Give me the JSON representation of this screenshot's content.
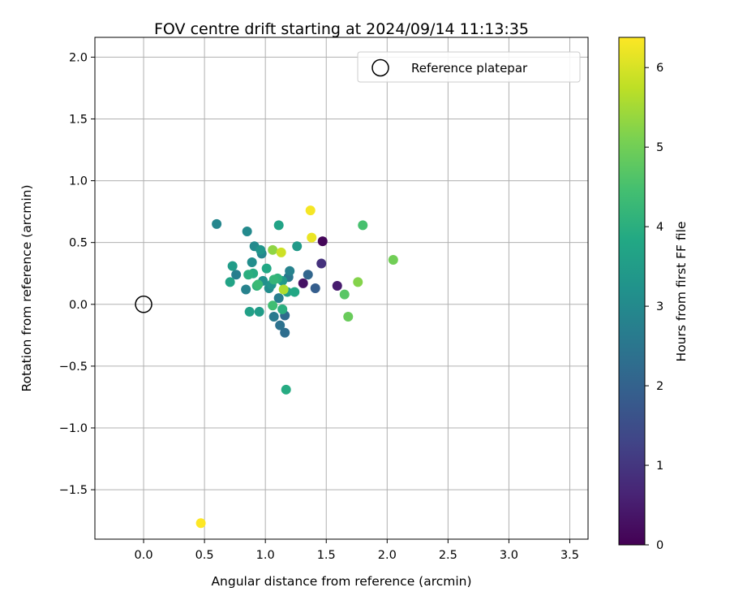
{
  "chart_data": {
    "type": "scatter",
    "title": "FOV centre drift starting at 2024/09/14 11:13:35",
    "xlabel": "Angular distance from reference (arcmin)",
    "ylabel": "Rotation from reference (arcmin)",
    "xlim": [
      -0.4,
      3.65
    ],
    "ylim": [
      -1.9,
      2.16
    ],
    "xticks": [
      0.0,
      0.5,
      1.0,
      1.5,
      2.0,
      2.5,
      3.0,
      3.5
    ],
    "xtick_labels": [
      "0.0",
      "0.5",
      "1.0",
      "1.5",
      "2.0",
      "2.5",
      "3.0",
      "3.5"
    ],
    "yticks": [
      -1.5,
      -1.0,
      -0.5,
      0.0,
      0.5,
      1.0,
      1.5,
      2.0
    ],
    "ytick_labels": [
      "−1.5",
      "−1.0",
      "−0.5",
      "0.0",
      "0.5",
      "1.0",
      "1.5",
      "2.0"
    ],
    "grid": true,
    "legend": {
      "position": "top-right",
      "entries": [
        "Reference platepar"
      ]
    },
    "reference_point": {
      "x": 0.0,
      "y": 0.0,
      "label": "Reference platepar"
    },
    "colorbar": {
      "label": "Hours from first FF file",
      "colormap": "viridis",
      "range": [
        0,
        6.38
      ],
      "ticks": [
        0,
        1,
        2,
        3,
        4,
        5,
        6
      ],
      "tick_labels": [
        "0",
        "1",
        "2",
        "3",
        "4",
        "5",
        "6"
      ]
    },
    "points": [
      {
        "x": 1.47,
        "y": 0.51,
        "hours": 0.1
      },
      {
        "x": 1.31,
        "y": 0.17,
        "hours": 0.3
      },
      {
        "x": 1.59,
        "y": 0.15,
        "hours": 0.5
      },
      {
        "x": 1.46,
        "y": 0.33,
        "hours": 0.9
      },
      {
        "x": 1.41,
        "y": 0.13,
        "hours": 1.9
      },
      {
        "x": 1.35,
        "y": 0.24,
        "hours": 2.1
      },
      {
        "x": 1.16,
        "y": -0.09,
        "hours": 2.2
      },
      {
        "x": 1.16,
        "y": -0.23,
        "hours": 2.3
      },
      {
        "x": 1.12,
        "y": -0.17,
        "hours": 2.4
      },
      {
        "x": 1.19,
        "y": 0.22,
        "hours": 2.5
      },
      {
        "x": 1.07,
        "y": -0.1,
        "hours": 2.6
      },
      {
        "x": 1.11,
        "y": 0.05,
        "hours": 2.7
      },
      {
        "x": 0.76,
        "y": 0.24,
        "hours": 2.7
      },
      {
        "x": 0.84,
        "y": 0.12,
        "hours": 2.8
      },
      {
        "x": 1.2,
        "y": 0.27,
        "hours": 2.8
      },
      {
        "x": 0.97,
        "y": 0.41,
        "hours": 2.9
      },
      {
        "x": 0.6,
        "y": 0.65,
        "hours": 2.9
      },
      {
        "x": 0.85,
        "y": 0.59,
        "hours": 3.0
      },
      {
        "x": 0.91,
        "y": 0.47,
        "hours": 3.0
      },
      {
        "x": 1.03,
        "y": 0.13,
        "hours": 3.1
      },
      {
        "x": 0.89,
        "y": 0.34,
        "hours": 3.1
      },
      {
        "x": 0.98,
        "y": 0.19,
        "hours": 3.2
      },
      {
        "x": 1.05,
        "y": 0.16,
        "hours": 3.3
      },
      {
        "x": 0.96,
        "y": 0.44,
        "hours": 3.3
      },
      {
        "x": 1.26,
        "y": 0.47,
        "hours": 3.4
      },
      {
        "x": 1.14,
        "y": 0.19,
        "hours": 3.4
      },
      {
        "x": 0.73,
        "y": 0.31,
        "hours": 3.5
      },
      {
        "x": 0.95,
        "y": -0.06,
        "hours": 3.5
      },
      {
        "x": 0.87,
        "y": -0.06,
        "hours": 3.6
      },
      {
        "x": 1.18,
        "y": 0.1,
        "hours": 3.6
      },
      {
        "x": 1.11,
        "y": 0.64,
        "hours": 3.7
      },
      {
        "x": 0.71,
        "y": 0.18,
        "hours": 3.7
      },
      {
        "x": 1.01,
        "y": 0.29,
        "hours": 3.8
      },
      {
        "x": 1.24,
        "y": 0.1,
        "hours": 3.8
      },
      {
        "x": 1.17,
        "y": -0.69,
        "hours": 3.9
      },
      {
        "x": 0.9,
        "y": 0.25,
        "hours": 3.9
      },
      {
        "x": 0.86,
        "y": 0.24,
        "hours": 4.0
      },
      {
        "x": 1.14,
        "y": -0.04,
        "hours": 4.0
      },
      {
        "x": 1.1,
        "y": 0.21,
        "hours": 4.1
      },
      {
        "x": 0.93,
        "y": 0.15,
        "hours": 4.1
      },
      {
        "x": 1.07,
        "y": 0.2,
        "hours": 4.2
      },
      {
        "x": 0.94,
        "y": 0.16,
        "hours": 4.3
      },
      {
        "x": 1.06,
        "y": -0.01,
        "hours": 4.4
      },
      {
        "x": 1.8,
        "y": 0.64,
        "hours": 4.5
      },
      {
        "x": 1.65,
        "y": 0.08,
        "hours": 4.7
      },
      {
        "x": 1.68,
        "y": -0.1,
        "hours": 4.9
      },
      {
        "x": 2.05,
        "y": 0.36,
        "hours": 5.0
      },
      {
        "x": 1.76,
        "y": 0.18,
        "hours": 5.2
      },
      {
        "x": 1.06,
        "y": 0.44,
        "hours": 5.3
      },
      {
        "x": 1.15,
        "y": 0.12,
        "hours": 5.6
      },
      {
        "x": 1.13,
        "y": 0.42,
        "hours": 5.9
      },
      {
        "x": 1.38,
        "y": 0.54,
        "hours": 6.2
      },
      {
        "x": 1.37,
        "y": 0.76,
        "hours": 6.3
      },
      {
        "x": 0.47,
        "y": -1.77,
        "hours": 6.4
      }
    ]
  }
}
